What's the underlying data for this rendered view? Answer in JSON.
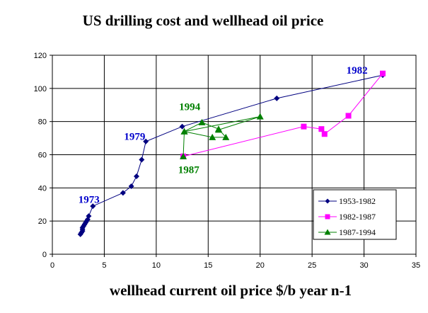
{
  "chart_data": {
    "type": "scatter",
    "title": "US drilling cost and wellhead oil price",
    "xlabel": "wellhead current oil price $/b year n-1",
    "ylabel": "",
    "xlim": [
      0,
      35
    ],
    "ylim": [
      0,
      120
    ],
    "x_ticks": [
      "0",
      "5",
      "10",
      "15",
      "20",
      "25",
      "30",
      "35"
    ],
    "y_ticks": [
      "0",
      "20",
      "40",
      "60",
      "80",
      "100",
      "120"
    ],
    "grid": "horizontal and vertical",
    "legend_position": "bottom-right",
    "series": [
      {
        "name": "1953-1982",
        "color": "#000080",
        "marker": "diamond",
        "points": [
          [
            2.7,
            12
          ],
          [
            2.8,
            13
          ],
          [
            2.9,
            14
          ],
          [
            2.9,
            15
          ],
          [
            2.9,
            16
          ],
          [
            3.0,
            17
          ],
          [
            3.1,
            18
          ],
          [
            3.2,
            19
          ],
          [
            3.3,
            20
          ],
          [
            3.4,
            21
          ],
          [
            3.5,
            23
          ],
          [
            3.9,
            29
          ],
          [
            6.8,
            37
          ],
          [
            7.6,
            41
          ],
          [
            8.1,
            47
          ],
          [
            8.6,
            57
          ],
          [
            9.0,
            68
          ],
          [
            12.5,
            77
          ],
          [
            21.6,
            94
          ],
          [
            31.8,
            108
          ]
        ]
      },
      {
        "name": "1982-1987",
        "color": "#ff00ff",
        "marker": "square",
        "points": [
          [
            31.8,
            109
          ],
          [
            28.5,
            83.5
          ],
          [
            26.2,
            72.5
          ],
          [
            25.9,
            75.5
          ],
          [
            24.2,
            77
          ],
          [
            12.6,
            59
          ]
        ]
      },
      {
        "name": "1987-1994",
        "color": "#008000",
        "marker": "triangle",
        "points": [
          [
            12.6,
            59
          ],
          [
            12.7,
            74
          ],
          [
            14.4,
            79.5
          ],
          [
            16.0,
            75.5
          ],
          [
            16.7,
            70.5
          ],
          [
            15.4,
            70.5
          ],
          [
            12.7,
            74
          ],
          [
            20.0,
            83
          ],
          [
            16.0,
            75
          ]
        ]
      }
    ],
    "annotations": [
      {
        "text": "1973",
        "color": "#0000cc",
        "x": 2.5,
        "y": 31
      },
      {
        "text": "1979",
        "color": "#0000cc",
        "x": 6.9,
        "y": 69
      },
      {
        "text": "1982",
        "color": "#0000cc",
        "x": 28.3,
        "y": 109
      },
      {
        "text": "1994",
        "color": "#008000",
        "x": 12.2,
        "y": 87
      },
      {
        "text": "1987",
        "color": "#008000",
        "x": 12.1,
        "y": 49
      }
    ]
  }
}
